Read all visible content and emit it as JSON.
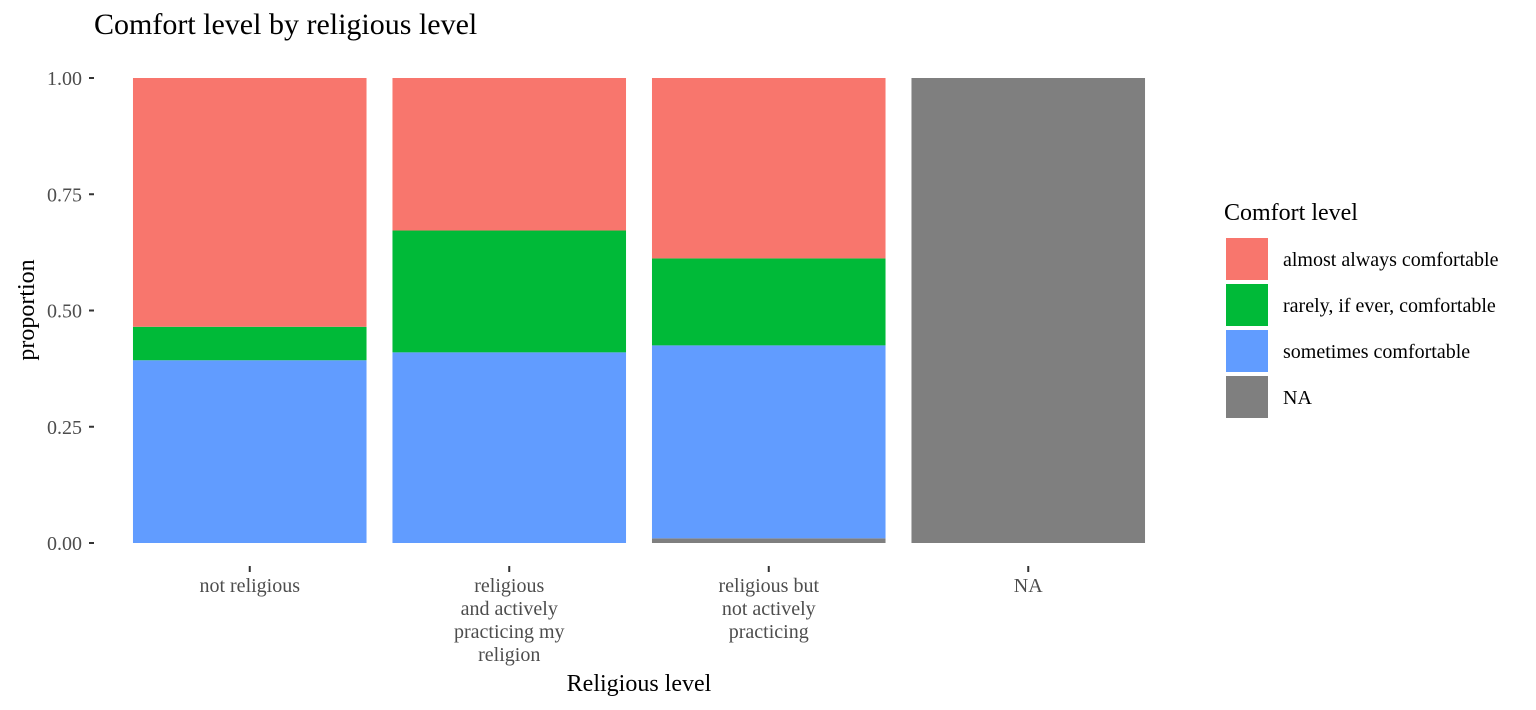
{
  "chart_data": {
    "type": "bar",
    "stacked": true,
    "title": "Comfort level by religious level",
    "xlabel": "Religious level",
    "ylabel": "proportion",
    "ylim": [
      0,
      1
    ],
    "yticks": [
      "0.00",
      "0.25",
      "0.50",
      "0.75",
      "1.00"
    ],
    "grid": false,
    "categories": [
      [
        "not religious"
      ],
      [
        "religious",
        "and actively",
        "practicing my",
        "religion"
      ],
      [
        "religious but",
        "not actively",
        "practicing"
      ],
      [
        "NA"
      ]
    ],
    "legend": {
      "title": "Comfort level",
      "placement": "right"
    },
    "series": [
      {
        "name": "NA",
        "color": "#7f7f7f",
        "values": [
          0.0,
          0.0,
          0.01,
          1.0
        ]
      },
      {
        "name": "sometimes comfortable",
        "color": "#619cff",
        "values": [
          0.393,
          0.41,
          0.415,
          0.0
        ]
      },
      {
        "name": "rarely, if ever, comfortable",
        "color": "#00ba38",
        "values": [
          0.072,
          0.262,
          0.187,
          0.0
        ]
      },
      {
        "name": "almost always comfortable",
        "color": "#f8766d",
        "values": [
          0.535,
          0.328,
          0.388,
          0.0
        ]
      }
    ],
    "legend_order": [
      "almost always comfortable",
      "rarely, if ever, comfortable",
      "sometimes comfortable",
      "NA"
    ]
  }
}
